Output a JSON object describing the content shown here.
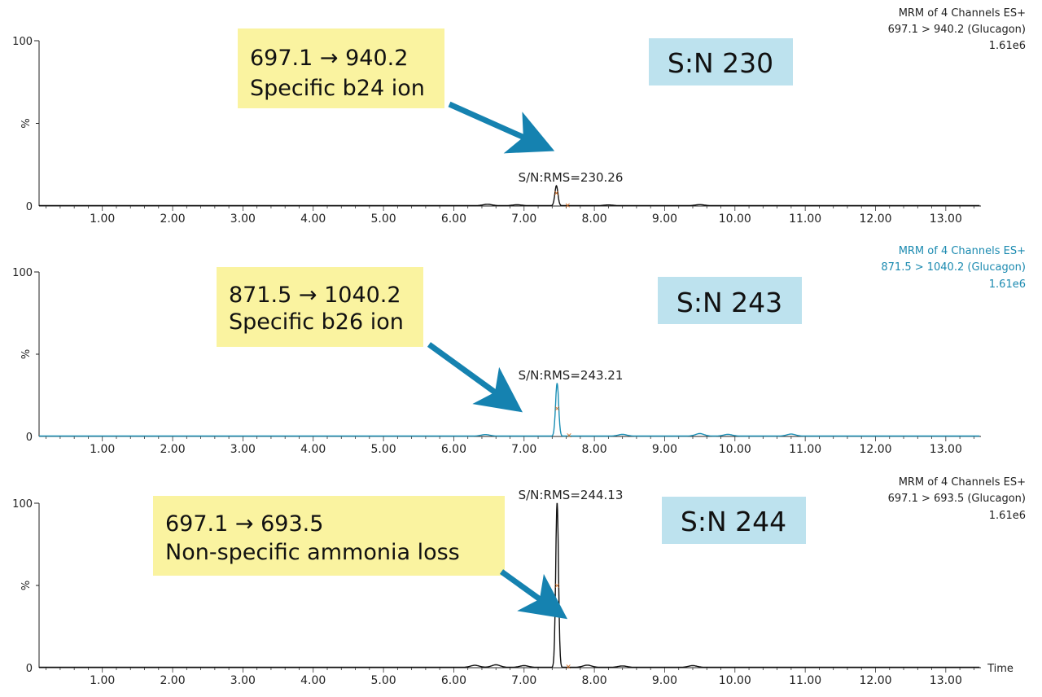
{
  "colors": {
    "trace_black": "#111111",
    "trace_blue": "#1b8fb5",
    "header_blue": "#1b8ab0",
    "marker": "#d2691e",
    "yellow_box": "#faf3a0",
    "blue_box": "#bde2ee",
    "arrow": "#1582b0"
  },
  "chart_data": [
    {
      "type": "line",
      "header": [
        "MRM of 4 Channels ES+",
        "697.1 > 940.2 (Glucagon)",
        "1.61e6"
      ],
      "header_color": "#222222",
      "trace_color": "#111111",
      "ylabel": "%",
      "yticks": [
        "100",
        "0"
      ],
      "xticks": [
        "1.00",
        "2.00",
        "3.00",
        "4.00",
        "5.00",
        "6.00",
        "7.00",
        "8.00",
        "9.00",
        "10.00",
        "11.00",
        "12.00",
        "13.00"
      ],
      "xlim": [
        0.1,
        13.5
      ],
      "ylim": [
        0,
        100
      ],
      "xlabel": "",
      "peak": {
        "x": 7.46,
        "y": 12,
        "width": 0.022
      },
      "markers": [
        {
          "x": 7.46,
          "y": 8
        },
        {
          "x": 7.62,
          "y": 0.6
        }
      ],
      "noise": [
        {
          "x": 6.48,
          "y": 0.8
        },
        {
          "x": 6.9,
          "y": 0.5
        },
        {
          "x": 8.2,
          "y": 0.4
        },
        {
          "x": 9.5,
          "y": 0.6
        }
      ],
      "peak_label": "S/N:RMS=230.26",
      "callout_lines": [
        "697.1 → 940.2",
        "Specific b24 ion"
      ],
      "sn_label": "S:N 230"
    },
    {
      "type": "line",
      "header": [
        "MRM of 4 Channels ES+",
        "871.5 > 1040.2 (Glucagon)",
        "1.61e6"
      ],
      "header_color": "#1b8ab0",
      "trace_color": "#1b8fb5",
      "ylabel": "%",
      "yticks": [
        "100",
        "0"
      ],
      "xticks": [
        "1.00",
        "2.00",
        "3.00",
        "4.00",
        "5.00",
        "6.00",
        "7.00",
        "8.00",
        "9.00",
        "10.00",
        "11.00",
        "12.00",
        "13.00"
      ],
      "xlim": [
        0.1,
        13.5
      ],
      "ylim": [
        0,
        100
      ],
      "xlabel": "",
      "peak": {
        "x": 7.47,
        "y": 32,
        "width": 0.022
      },
      "markers": [
        {
          "x": 7.47,
          "y": 17
        },
        {
          "x": 7.64,
          "y": 0.8
        }
      ],
      "noise": [
        {
          "x": 6.45,
          "y": 0.9
        },
        {
          "x": 8.4,
          "y": 1.0
        },
        {
          "x": 9.5,
          "y": 1.5
        },
        {
          "x": 9.9,
          "y": 1.0
        },
        {
          "x": 10.8,
          "y": 1.2
        }
      ],
      "peak_label": "S/N:RMS=243.21",
      "callout_lines": [
        "871.5 → 1040.2",
        "Specific b26 ion"
      ],
      "sn_label": "S:N 243"
    },
    {
      "type": "line",
      "header": [
        "MRM of 4 Channels ES+",
        "697.1 > 693.5 (Glucagon)",
        "1.61e6"
      ],
      "header_color": "#222222",
      "trace_color": "#111111",
      "ylabel": "%",
      "yticks": [
        "100",
        "0"
      ],
      "xticks": [
        "1.00",
        "2.00",
        "3.00",
        "4.00",
        "5.00",
        "6.00",
        "7.00",
        "8.00",
        "9.00",
        "10.00",
        "11.00",
        "12.00",
        "13.00"
      ],
      "xlim": [
        0.1,
        13.5
      ],
      "ylim": [
        0,
        100
      ],
      "xlabel": "Time",
      "peak": {
        "x": 7.47,
        "y": 100,
        "width": 0.02
      },
      "markers": [
        {
          "x": 7.47,
          "y": 50
        },
        {
          "x": 7.63,
          "y": 0.8
        }
      ],
      "noise": [
        {
          "x": 6.3,
          "y": 1.2
        },
        {
          "x": 6.6,
          "y": 1.5
        },
        {
          "x": 7.0,
          "y": 1.0
        },
        {
          "x": 7.9,
          "y": 1.3
        },
        {
          "x": 8.4,
          "y": 0.8
        },
        {
          "x": 9.4,
          "y": 1.0
        }
      ],
      "peak_label": "S/N:RMS=244.13",
      "callout_lines": [
        "697.1 → 693.5",
        "Non-specific ammonia loss"
      ],
      "sn_label": "S:N 244"
    }
  ]
}
